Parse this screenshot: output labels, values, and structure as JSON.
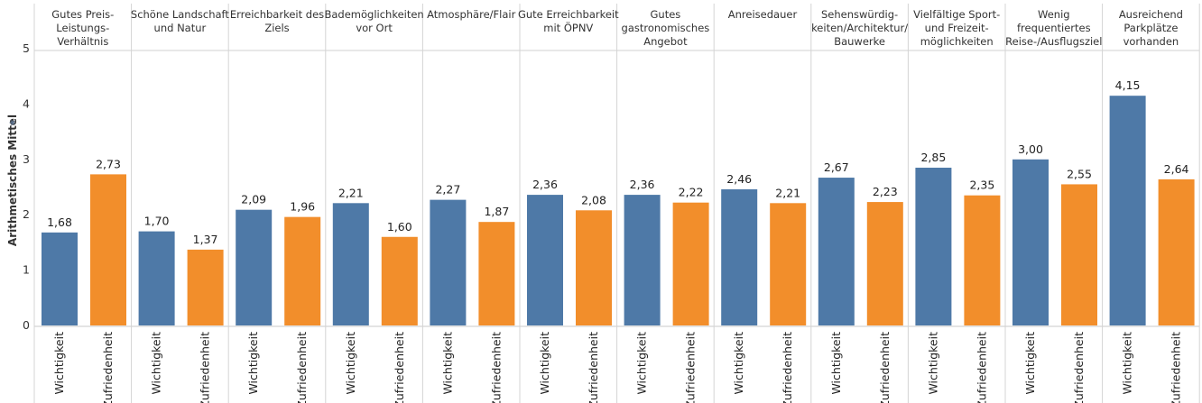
{
  "chart_data": {
    "type": "bar",
    "ylabel": "Arithmetisches Mittel",
    "ylim": [
      0,
      5
    ],
    "yticks": [
      "0",
      "1",
      "2",
      "3",
      "4",
      "5"
    ],
    "series_colors": {
      "Wichtigkeit": "#4e79a7",
      "Zufriedenheit": "#f28e2b"
    },
    "groups": [
      {
        "label": [
          "Gutes Preis-",
          "Leistungs-",
          "Verhältnis"
        ],
        "bars": [
          {
            "category": "Wichtigkeit",
            "value": 1.68,
            "label": "1,68"
          },
          {
            "category": "Zufriedenheit",
            "value": 2.73,
            "label": "2,73"
          }
        ]
      },
      {
        "label": [
          "Schöne Landschaft",
          "und Natur"
        ],
        "bars": [
          {
            "category": "Wichtigkeit",
            "value": 1.7,
            "label": "1,70"
          },
          {
            "category": "Zufriedenheit",
            "value": 1.37,
            "label": "1,37"
          }
        ]
      },
      {
        "label": [
          "Erreichbarkeit des",
          "Ziels"
        ],
        "bars": [
          {
            "category": "Wichtigkeit",
            "value": 2.09,
            "label": "2,09"
          },
          {
            "category": "Zufriedenheit",
            "value": 1.96,
            "label": "1,96"
          }
        ]
      },
      {
        "label": [
          "Bademöglichkeiten",
          "vor Ort"
        ],
        "bars": [
          {
            "category": "Wichtigkeit",
            "value": 2.21,
            "label": "2,21"
          },
          {
            "category": "Zufriedenheit",
            "value": 1.6,
            "label": "1,60"
          }
        ]
      },
      {
        "label": [
          "Atmosphäre/Flair"
        ],
        "bars": [
          {
            "category": "Wichtigkeit",
            "value": 2.27,
            "label": "2,27"
          },
          {
            "category": "Zufriedenheit",
            "value": 1.87,
            "label": "1,87"
          }
        ]
      },
      {
        "label": [
          "Gute Erreichbarkeit",
          "mit ÖPNV"
        ],
        "bars": [
          {
            "category": "Wichtigkeit",
            "value": 2.36,
            "label": "2,36"
          },
          {
            "category": "Zufriedenheit",
            "value": 2.08,
            "label": "2,08"
          }
        ]
      },
      {
        "label": [
          "Gutes",
          "gastronomisches",
          "Angebot"
        ],
        "bars": [
          {
            "category": "Wichtigkeit",
            "value": 2.36,
            "label": "2,36"
          },
          {
            "category": "Zufriedenheit",
            "value": 2.22,
            "label": "2,22"
          }
        ]
      },
      {
        "label": [
          "Anreisedauer"
        ],
        "bars": [
          {
            "category": "Wichtigkeit",
            "value": 2.46,
            "label": "2,46"
          },
          {
            "category": "Zufriedenheit",
            "value": 2.21,
            "label": "2,21"
          }
        ]
      },
      {
        "label": [
          "Sehenswürdig-",
          "keiten/Architektur/",
          "Bauwerke"
        ],
        "bars": [
          {
            "category": "Wichtigkeit",
            "value": 2.67,
            "label": "2,67"
          },
          {
            "category": "Zufriedenheit",
            "value": 2.23,
            "label": "2,23"
          }
        ]
      },
      {
        "label": [
          "Vielfältige Sport-",
          "und Freizeit-",
          "möglichkeiten"
        ],
        "bars": [
          {
            "category": "Wichtigkeit",
            "value": 2.85,
            "label": "2,85"
          },
          {
            "category": "Zufriedenheit",
            "value": 2.35,
            "label": "2,35"
          }
        ]
      },
      {
        "label": [
          "Wenig",
          "frequentiertes",
          "Reise-/Ausflugsziel"
        ],
        "bars": [
          {
            "category": "Wichtigkeit",
            "value": 3.0,
            "label": "3,00"
          },
          {
            "category": "Zufriedenheit",
            "value": 2.55,
            "label": "2,55"
          }
        ]
      },
      {
        "label": [
          "Ausreichend",
          "Parkplätze",
          "vorhanden"
        ],
        "bars": [
          {
            "category": "Wichtigkeit",
            "value": 4.15,
            "label": "4,15"
          },
          {
            "category": "Zufriedenheit",
            "value": 2.64,
            "label": "2,64"
          }
        ]
      }
    ]
  }
}
